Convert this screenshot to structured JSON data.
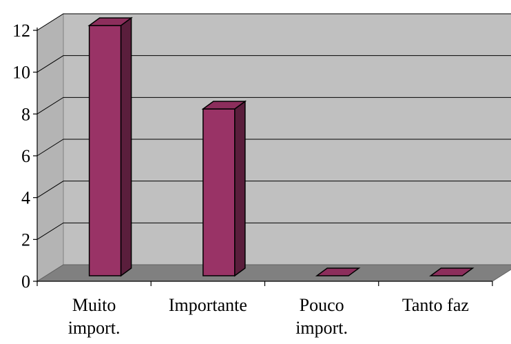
{
  "chart_data": {
    "type": "bar",
    "categories": [
      [
        "Muito",
        "import."
      ],
      [
        "Importante"
      ],
      [
        "Pouco",
        "import."
      ],
      [
        "Tanto faz"
      ]
    ],
    "values": [
      12,
      8,
      0,
      0
    ],
    "ylim": [
      0,
      12
    ],
    "yticks": [
      0,
      2,
      4,
      6,
      8,
      10,
      12
    ],
    "grid": true,
    "legend": "none",
    "colors": {
      "bar_front": "#993366",
      "bar_side": "#5a1e3c",
      "bar_top": "#8c2e5c",
      "back_wall": "#c0c0c0",
      "side_wall": "#b4b4b4",
      "floor": "#808080"
    }
  }
}
